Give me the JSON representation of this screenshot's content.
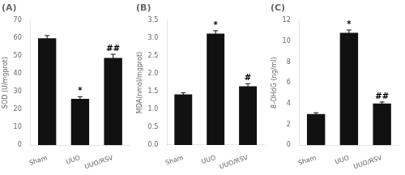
{
  "chart_data": [
    {
      "type": "bar",
      "title": "(A)",
      "y_label": "SOD (U/mgprot)",
      "categories": [
        "Sham",
        "UUO",
        "UUO/RSV"
      ],
      "values": [
        60.0,
        26.0,
        49.0
      ],
      "errors": [
        1.5,
        1.2,
        2.0
      ],
      "color": "#111111",
      "ylim": [
        0,
        70
      ],
      "yticks": [
        0,
        10,
        20,
        30,
        40,
        50,
        60,
        70
      ],
      "grid": false,
      "annotations": [
        {
          "category": "UUO",
          "text": "*"
        },
        {
          "category": "UUO/RSV",
          "text": "##"
        }
      ]
    },
    {
      "type": "bar",
      "title": "(B)",
      "y_label": "MDA(nmol/mgprot)",
      "categories": [
        "Sham",
        "UUO",
        "UUO/RSV"
      ],
      "values": [
        1.42,
        3.13,
        1.65
      ],
      "errors": [
        0.05,
        0.08,
        0.07
      ],
      "color": "#111111",
      "ylim": [
        0,
        3.5
      ],
      "yticks": [
        {
          "value": 0,
          "label": "0.0"
        },
        0.5,
        {
          "value": 1.0,
          "label": "1.0"
        },
        1.5,
        {
          "value": 2.0,
          "label": "2.0"
        },
        2.5,
        {
          "value": 3.0,
          "label": "3.0"
        },
        3.5
      ],
      "grid": false,
      "annotations": [
        {
          "category": "UUO",
          "text": "*"
        },
        {
          "category": "UUO/RSV",
          "text": "#"
        }
      ]
    },
    {
      "type": "bar",
      "title": "(C)",
      "y_label": "8-OHdG (ng/ml)",
      "categories": [
        "Sham",
        "UUO",
        "UUO/RSV"
      ],
      "values": [
        3.0,
        10.8,
        4.0
      ],
      "errors": [
        0.12,
        0.28,
        0.15
      ],
      "color": "#111111",
      "ylim": [
        0,
        12
      ],
      "yticks": [
        0,
        2,
        4,
        6,
        8,
        10,
        12
      ],
      "grid": false,
      "annotations": [
        {
          "category": "UUO",
          "text": "*"
        },
        {
          "category": "UUO/RSV",
          "text": "##"
        }
      ]
    }
  ]
}
